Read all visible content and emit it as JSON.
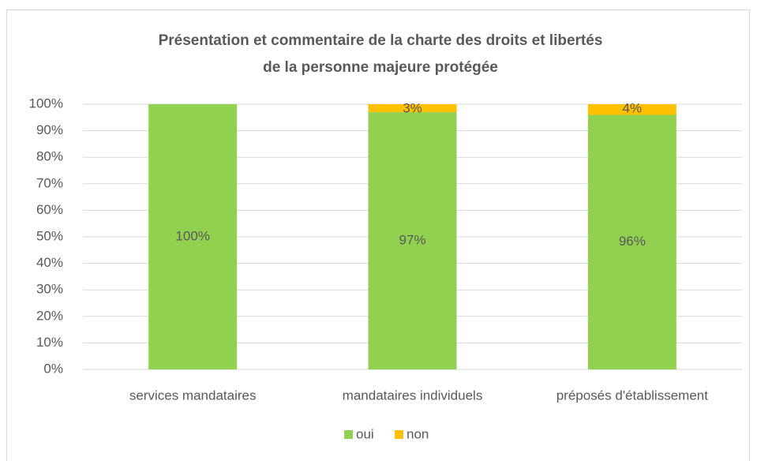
{
  "chart_data": {
    "type": "stacked_bar",
    "title": [
      "Présentation et commentaire de la charte des droits et libertés",
      "de la personne majeure protégée"
    ],
    "categories": [
      "services mandataires",
      "mandataires individuels",
      "préposés d'établissement"
    ],
    "series": [
      {
        "name": "oui",
        "color": "#92d050",
        "values": [
          100,
          97,
          96
        ],
        "value_labels": [
          "100%",
          "97%",
          "96%"
        ]
      },
      {
        "name": "non",
        "color": "#ffc000",
        "values": [
          0,
          3,
          4
        ],
        "value_labels": [
          null,
          "3%",
          "4%"
        ]
      }
    ],
    "ylim": [
      0,
      100
    ],
    "yticks": [
      {
        "value": 0,
        "label": "0%"
      },
      {
        "value": 10,
        "label": "10%"
      },
      {
        "value": 20,
        "label": "20%"
      },
      {
        "value": 30,
        "label": "30%"
      },
      {
        "value": 40,
        "label": "40%"
      },
      {
        "value": 50,
        "label": "50%"
      },
      {
        "value": 60,
        "label": "60%"
      },
      {
        "value": 70,
        "label": "70%"
      },
      {
        "value": 80,
        "label": "80%"
      },
      {
        "value": 90,
        "label": "90%"
      },
      {
        "value": 100,
        "label": "100%"
      }
    ],
    "grid": true,
    "legend": "bottom"
  }
}
